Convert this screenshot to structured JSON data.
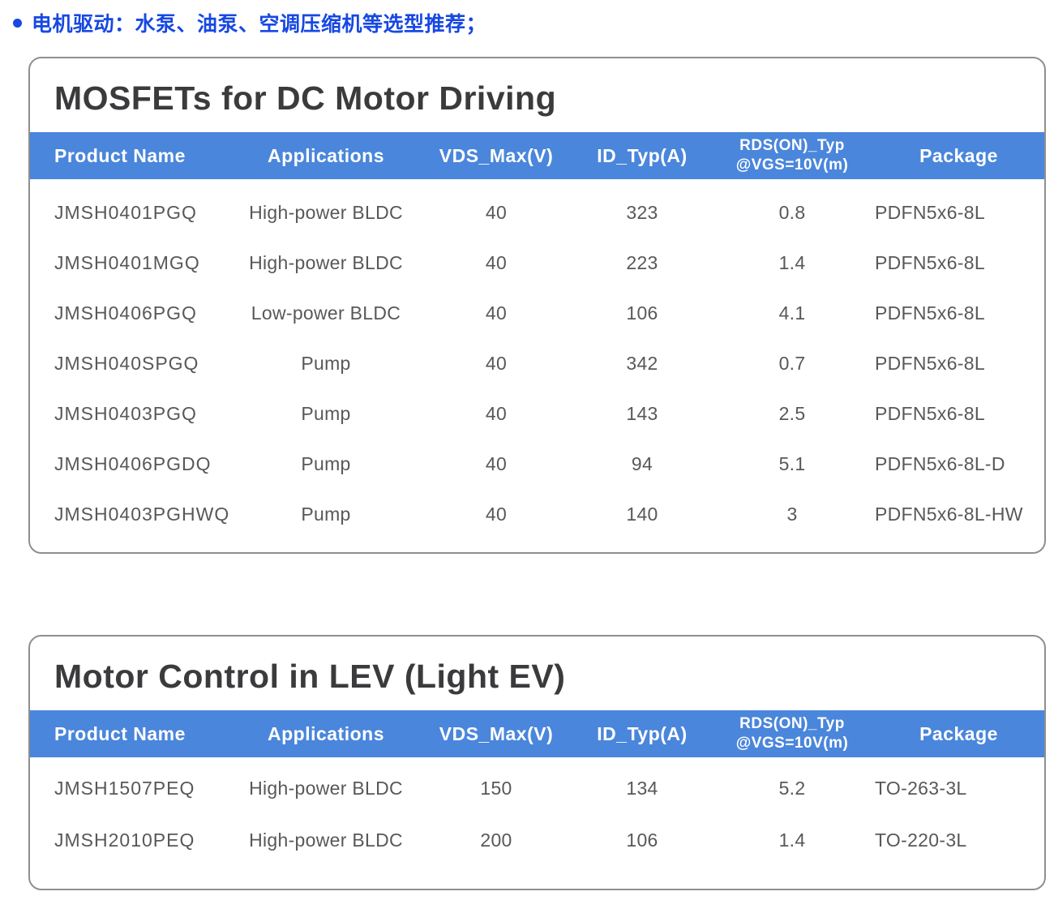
{
  "page": {
    "background": "#ffffff",
    "accent_blue": "#4a86db",
    "bullet_blue": "#1748e2",
    "title_color": "#3b3b3d",
    "cell_text_color": "#57585a"
  },
  "bullet": {
    "text": "电机驱动：水泵、油泵、空调压缩机等选型推荐；"
  },
  "tables": [
    {
      "title": "MOSFETs for DC Motor Driving",
      "columns": [
        "Product Name",
        "Applications",
        "VDS_Max(V)",
        "ID_Typ(A)",
        "RDS(ON)_Typ\n@VGS=10V(m)",
        "Package"
      ],
      "rows": [
        [
          "JMSH0401PGQ",
          "High-power BLDC",
          "40",
          "323",
          "0.8",
          "PDFN5x6-8L"
        ],
        [
          "JMSH0401MGQ",
          "High-power BLDC",
          "40",
          "223",
          "1.4",
          "PDFN5x6-8L"
        ],
        [
          "JMSH0406PGQ",
          "Low-power BLDC",
          "40",
          "106",
          "4.1",
          "PDFN5x6-8L"
        ],
        [
          "JMSH040SPGQ",
          "Pump",
          "40",
          "342",
          "0.7",
          "PDFN5x6-8L"
        ],
        [
          "JMSH0403PGQ",
          "Pump",
          "40",
          "143",
          "2.5",
          "PDFN5x6-8L"
        ],
        [
          "JMSH0406PGDQ",
          "Pump",
          "40",
          "94",
          "5.1",
          "PDFN5x6-8L-D"
        ],
        [
          "JMSH0403PGHWQ",
          "Pump",
          "40",
          "140",
          "3",
          "PDFN5x6-8L-HW"
        ]
      ]
    },
    {
      "title": "Motor Control in LEV (Light EV)",
      "columns": [
        "Product Name",
        "Applications",
        "VDS_Max(V)",
        "ID_Typ(A)",
        "RDS(ON)_Typ\n@VGS=10V(m)",
        "Package"
      ],
      "rows": [
        [
          "JMSH1507PEQ",
          "High-power BLDC",
          "150",
          "134",
          "5.2",
          "TO-263-3L"
        ],
        [
          "JMSH2010PEQ",
          "High-power BLDC",
          "200",
          "106",
          "1.4",
          "TO-220-3L"
        ]
      ]
    }
  ]
}
